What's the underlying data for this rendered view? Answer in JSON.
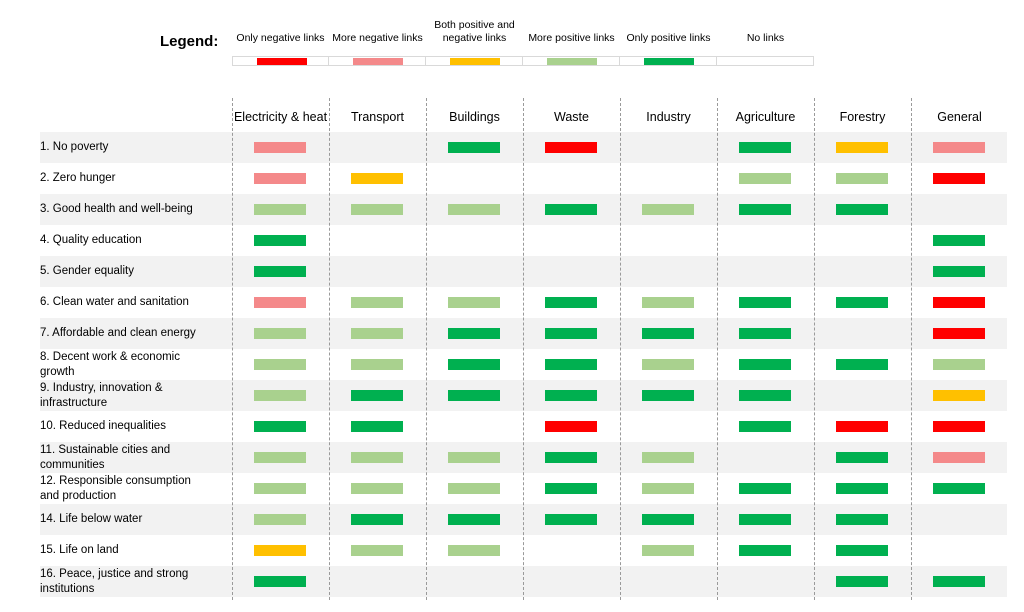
{
  "legend": {
    "title": "Legend:",
    "items": [
      {
        "label": "Only negative links",
        "code": "neg",
        "color": "#ff0000"
      },
      {
        "label": "More negative links",
        "code": "moreneg",
        "color": "#f4898a"
      },
      {
        "label": "Both positive and negative links",
        "code": "both",
        "color": "#ffc000"
      },
      {
        "label": "More positive links",
        "code": "morepos",
        "color": "#a9d18e"
      },
      {
        "label": "Only positive links",
        "code": "pos",
        "color": "#00b050"
      },
      {
        "label": "No links",
        "code": "none",
        "color": "#ffffff"
      }
    ]
  },
  "chart_data": {
    "type": "heatmap",
    "columns": [
      "Electricity & heat",
      "Transport",
      "Buildings",
      "Waste",
      "Industry",
      "Agriculture",
      "Forestry",
      "General"
    ],
    "rows": [
      {
        "label": "1. No poverty",
        "values": [
          "moreneg",
          "",
          "pos",
          "neg",
          "",
          "pos",
          "both",
          "moreneg"
        ]
      },
      {
        "label": "2. Zero hunger",
        "values": [
          "moreneg",
          "both",
          "",
          "",
          "",
          "morepos",
          "morepos",
          "neg"
        ]
      },
      {
        "label": "3. Good health and well-being",
        "values": [
          "morepos",
          "morepos",
          "morepos",
          "pos",
          "morepos",
          "pos",
          "pos",
          ""
        ]
      },
      {
        "label": "4. Quality education",
        "values": [
          "pos",
          "",
          "",
          "",
          "",
          "",
          "",
          "pos"
        ]
      },
      {
        "label": "5. Gender equality",
        "values": [
          "pos",
          "",
          "",
          "",
          "",
          "",
          "",
          "pos"
        ]
      },
      {
        "label": "6. Clean water and sanitation",
        "values": [
          "moreneg",
          "morepos",
          "morepos",
          "pos",
          "morepos",
          "pos",
          "pos",
          "neg"
        ]
      },
      {
        "label": "7. Affordable and clean energy",
        "values": [
          "morepos",
          "morepos",
          "pos",
          "pos",
          "pos",
          "pos",
          "",
          "neg"
        ]
      },
      {
        "label": "8. Decent work & economic growth",
        "values": [
          "morepos",
          "morepos",
          "pos",
          "pos",
          "morepos",
          "pos",
          "pos",
          "morepos"
        ]
      },
      {
        "label": "9. Industry, innovation & infrastructure",
        "values": [
          "morepos",
          "pos",
          "pos",
          "pos",
          "pos",
          "pos",
          "",
          "both"
        ]
      },
      {
        "label": "10. Reduced inequalities",
        "values": [
          "pos",
          "pos",
          "",
          "neg",
          "",
          "pos",
          "neg",
          "neg"
        ]
      },
      {
        "label": "11. Sustainable cities and communities",
        "values": [
          "morepos",
          "morepos",
          "morepos",
          "pos",
          "morepos",
          "",
          "pos",
          "moreneg"
        ]
      },
      {
        "label": "12. Responsible consumption and production",
        "values": [
          "morepos",
          "morepos",
          "morepos",
          "pos",
          "morepos",
          "pos",
          "pos",
          "pos"
        ]
      },
      {
        "label": "14. Life below water",
        "values": [
          "morepos",
          "pos",
          "pos",
          "pos",
          "pos",
          "pos",
          "pos",
          ""
        ]
      },
      {
        "label": "15. Life on land",
        "values": [
          "both",
          "morepos",
          "morepos",
          "",
          "morepos",
          "pos",
          "pos",
          ""
        ]
      },
      {
        "label": "16. Peace, justice and strong institutions",
        "values": [
          "pos",
          "",
          "",
          "",
          "",
          "",
          "pos",
          "pos"
        ]
      }
    ]
  }
}
